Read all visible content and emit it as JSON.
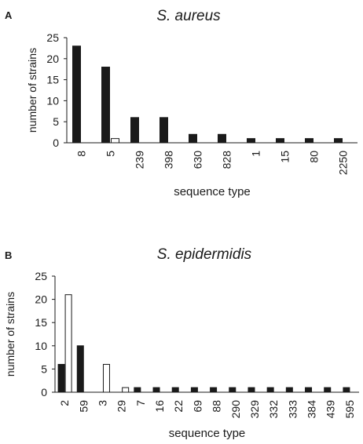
{
  "panels": [
    {
      "letter": "A"
    },
    {
      "letter": "B"
    }
  ],
  "chart_data": [
    {
      "type": "bar",
      "title": "S. aureus",
      "xlabel": "sequence type",
      "ylabel": "number of strains",
      "ylim": [
        0,
        25
      ],
      "yticks": [
        0,
        5,
        10,
        15,
        20,
        25
      ],
      "categories": [
        "8",
        "5",
        "239",
        "398",
        "630",
        "828",
        "1",
        "15",
        "80",
        "2250"
      ],
      "series": [
        {
          "color": "#1a1a1a",
          "values": [
            23,
            18,
            6,
            6,
            2,
            2,
            1,
            1,
            1,
            1
          ]
        },
        {
          "color": "#ffffff",
          "values": [
            0,
            1,
            0,
            0,
            0,
            0,
            0,
            0,
            0,
            0
          ]
        }
      ],
      "grid": false,
      "legend": "none"
    },
    {
      "type": "bar",
      "title": "S. epidermidis",
      "xlabel": "sequence type",
      "ylabel": "number of strains",
      "ylim": [
        0,
        25
      ],
      "yticks": [
        0,
        5,
        10,
        15,
        20,
        25
      ],
      "categories": [
        "2",
        "59",
        "3",
        "29",
        "7",
        "16",
        "22",
        "69",
        "88",
        "290",
        "329",
        "332",
        "333",
        "384",
        "439",
        "595"
      ],
      "series": [
        {
          "color": "#1a1a1a",
          "values": [
            6,
            10,
            0,
            0,
            1,
            1,
            1,
            1,
            1,
            1,
            1,
            1,
            1,
            1,
            1,
            1
          ]
        },
        {
          "color": "#ffffff",
          "values": [
            21,
            0,
            6,
            1,
            0,
            0,
            0,
            0,
            0,
            0,
            0,
            0,
            0,
            0,
            0,
            0
          ]
        }
      ],
      "grid": false,
      "legend": "none"
    }
  ]
}
